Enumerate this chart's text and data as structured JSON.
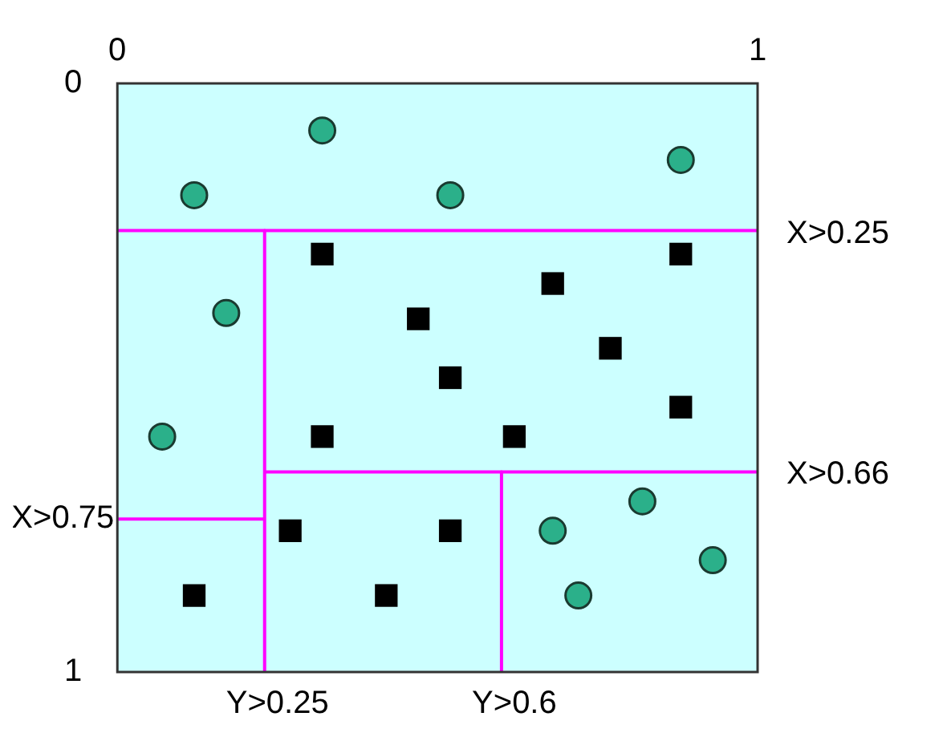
{
  "chart_data": {
    "type": "scatter",
    "xlim": [
      0,
      1
    ],
    "xticks": [
      0,
      1
    ],
    "ylim": [
      1,
      0
    ],
    "yticks": [
      0,
      1
    ],
    "legend": false,
    "series": [
      {
        "color": "#2bb08a",
        "marker": "circle",
        "x": [
          0.12,
          0.32,
          0.52,
          0.88,
          0.17,
          0.07,
          0.68,
          0.82,
          0.93,
          0.72
        ],
        "values": [
          0.19,
          0.08,
          0.19,
          0.13,
          0.39,
          0.6,
          0.76,
          0.71,
          0.81,
          0.87
        ]
      },
      {
        "color": "#000000",
        "marker": "square",
        "x": [
          0.32,
          0.88,
          0.68,
          0.47,
          0.77,
          0.52,
          0.88,
          0.32,
          0.62,
          0.27,
          0.52,
          0.12,
          0.42
        ],
        "values": [
          0.29,
          0.29,
          0.34,
          0.4,
          0.45,
          0.5,
          0.55,
          0.6,
          0.6,
          0.76,
          0.76,
          0.87,
          0.87
        ]
      },
      {
        "type": "line",
        "color": "#ff00ff",
        "marker": "none",
        "x": [
          0,
          1
        ],
        "values": [
          0.25,
          0.25
        ]
      },
      {
        "type": "line",
        "color": "#ff00ff",
        "marker": "none",
        "x": [
          0.23,
          0.23
        ],
        "values": [
          0.25,
          1
        ]
      },
      {
        "type": "line",
        "color": "#ff00ff",
        "marker": "none",
        "x": [
          0.23,
          1
        ],
        "values": [
          0.66,
          0.66
        ]
      },
      {
        "type": "line",
        "color": "#ff00ff",
        "marker": "none",
        "x": [
          0,
          0.23
        ],
        "values": [
          0.74,
          0.74
        ]
      },
      {
        "type": "line",
        "color": "#ff00ff",
        "marker": "none",
        "x": [
          0.6,
          0.6
        ],
        "values": [
          0.66,
          1
        ]
      }
    ],
    "annotations": [
      {
        "text": "X>0.25",
        "x": 1,
        "y": 0.25
      },
      {
        "text": "X>0.66",
        "x": 1,
        "y": 0.66
      },
      {
        "text": "X>0.75",
        "x": 0,
        "y": 0.74
      },
      {
        "text": "Y>0.25",
        "x": 0.23,
        "y": 1
      },
      {
        "text": "Y>0.6",
        "x": 0.6,
        "y": 1
      }
    ]
  }
}
